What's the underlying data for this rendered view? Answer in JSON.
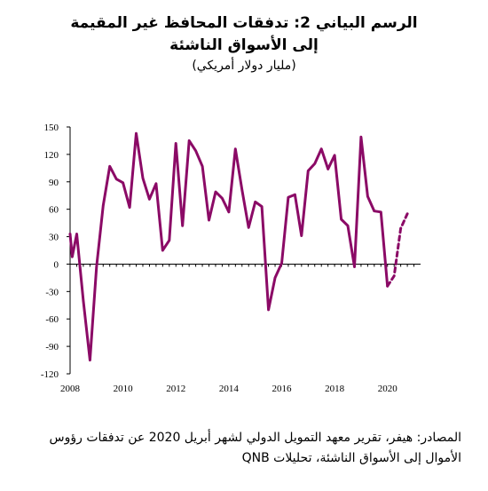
{
  "header": {
    "title_line1": "الرسم البياني 2: تدفقات المحافظ غير المقيمة",
    "title_line2": "إلى الأسواق الناشئة",
    "subtitle": "(مليار دولار أمريكي)"
  },
  "footer": {
    "source": "المصادر: هيفر، تقرير معهد التمويل الدولي لشهر أبريل 2020 عن تدفقات رؤوس الأموال إلى الأسواق الناشئة، تحليلات QNB"
  },
  "chart_data": {
    "type": "line",
    "title": "",
    "xlabel": "",
    "ylabel": "",
    "ylim": [
      -120,
      150
    ],
    "xlim": [
      2008,
      2021.25
    ],
    "y_ticks": [
      150,
      120,
      90,
      60,
      30,
      0,
      -30,
      -60,
      -90,
      -120
    ],
    "y_tick_labels": [
      "150",
      "120",
      "90",
      "60",
      "30",
      "0",
      "-30",
      "-60",
      "-90",
      "-120"
    ],
    "x_ticks": [
      2008,
      2010,
      2012,
      2014,
      2016,
      2018,
      2020
    ],
    "x_tick_labels": [
      "2008",
      "2010",
      "2012",
      "2014",
      "2016",
      "2018",
      "2020"
    ],
    "grid": false,
    "legend": "none",
    "colors": {
      "series": "#8b0a66",
      "axis": "#000000"
    },
    "series": [
      {
        "style": "solid",
        "x": [
          2008.0,
          2008.08,
          2008.25,
          2008.5,
          2008.75,
          2009.0,
          2009.25,
          2009.5,
          2009.75,
          2010.0,
          2010.25,
          2010.5,
          2010.75,
          2011.0,
          2011.25,
          2011.5,
          2011.75,
          2012.0,
          2012.25,
          2012.5,
          2012.75,
          2013.0,
          2013.25,
          2013.5,
          2013.75,
          2014.0,
          2014.25,
          2014.5,
          2014.75,
          2015.0,
          2015.25,
          2015.5,
          2015.75,
          2016.0,
          2016.25,
          2016.5,
          2016.75,
          2017.0,
          2017.25,
          2017.5,
          2017.75,
          2018.0,
          2018.25,
          2018.5,
          2018.75,
          2019.0,
          2019.25,
          2019.5,
          2019.75,
          2020.0
        ],
        "y": [
          33,
          8,
          33,
          -40,
          -105,
          -3,
          64,
          107,
          93,
          89,
          62,
          143,
          94,
          71,
          88,
          15,
          26,
          132,
          42,
          135,
          124,
          107,
          48,
          79,
          72,
          57,
          126,
          81,
          40,
          68,
          63,
          -50,
          -15,
          1,
          73,
          76,
          31,
          102,
          110,
          126,
          104,
          119,
          49,
          42,
          -3,
          139,
          74,
          58,
          57,
          -24
        ]
      },
      {
        "style": "dashed",
        "x": [
          2020.0,
          2020.25,
          2020.5,
          2020.75
        ],
        "y": [
          -24,
          -13,
          39,
          55
        ]
      }
    ]
  }
}
